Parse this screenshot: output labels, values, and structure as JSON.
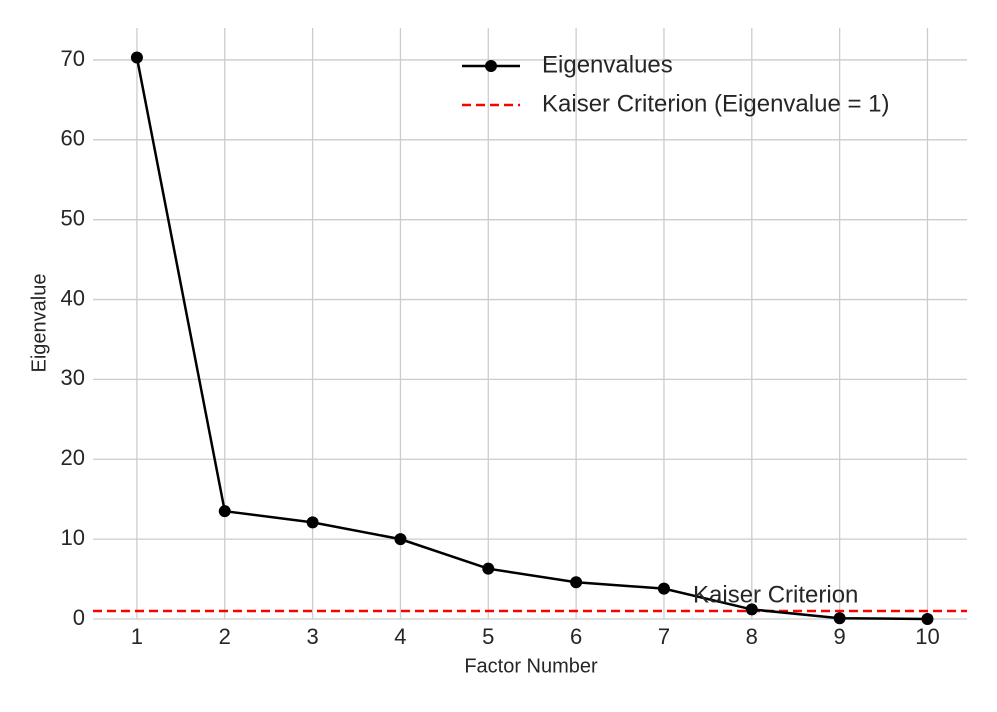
{
  "chart_data": {
    "type": "line",
    "x_label": "Factor Number",
    "y_label": "Eigenvalue",
    "x": [
      1,
      2,
      3,
      4,
      5,
      6,
      7,
      8,
      9,
      10
    ],
    "series": [
      {
        "name": "Eigenvalues",
        "color": "#000000",
        "values": [
          70.3,
          13.5,
          12.1,
          10.0,
          6.3,
          4.6,
          3.8,
          1.2,
          0.1,
          0.0
        ]
      }
    ],
    "reference_line": {
      "name": "Kaiser Criterion (Eigenvalue = 1)",
      "value": 1,
      "color": "#ff0000"
    },
    "annotation": "Kaiser Criterion",
    "xlim": [
      0.5,
      10.45
    ],
    "ylim": [
      0,
      74
    ],
    "xticks": [
      1,
      2,
      3,
      4,
      5,
      6,
      7,
      8,
      9,
      10
    ],
    "yticks": [
      0,
      10,
      20,
      30,
      40,
      50,
      60,
      70
    ],
    "grid": true,
    "legend": "upper right"
  }
}
